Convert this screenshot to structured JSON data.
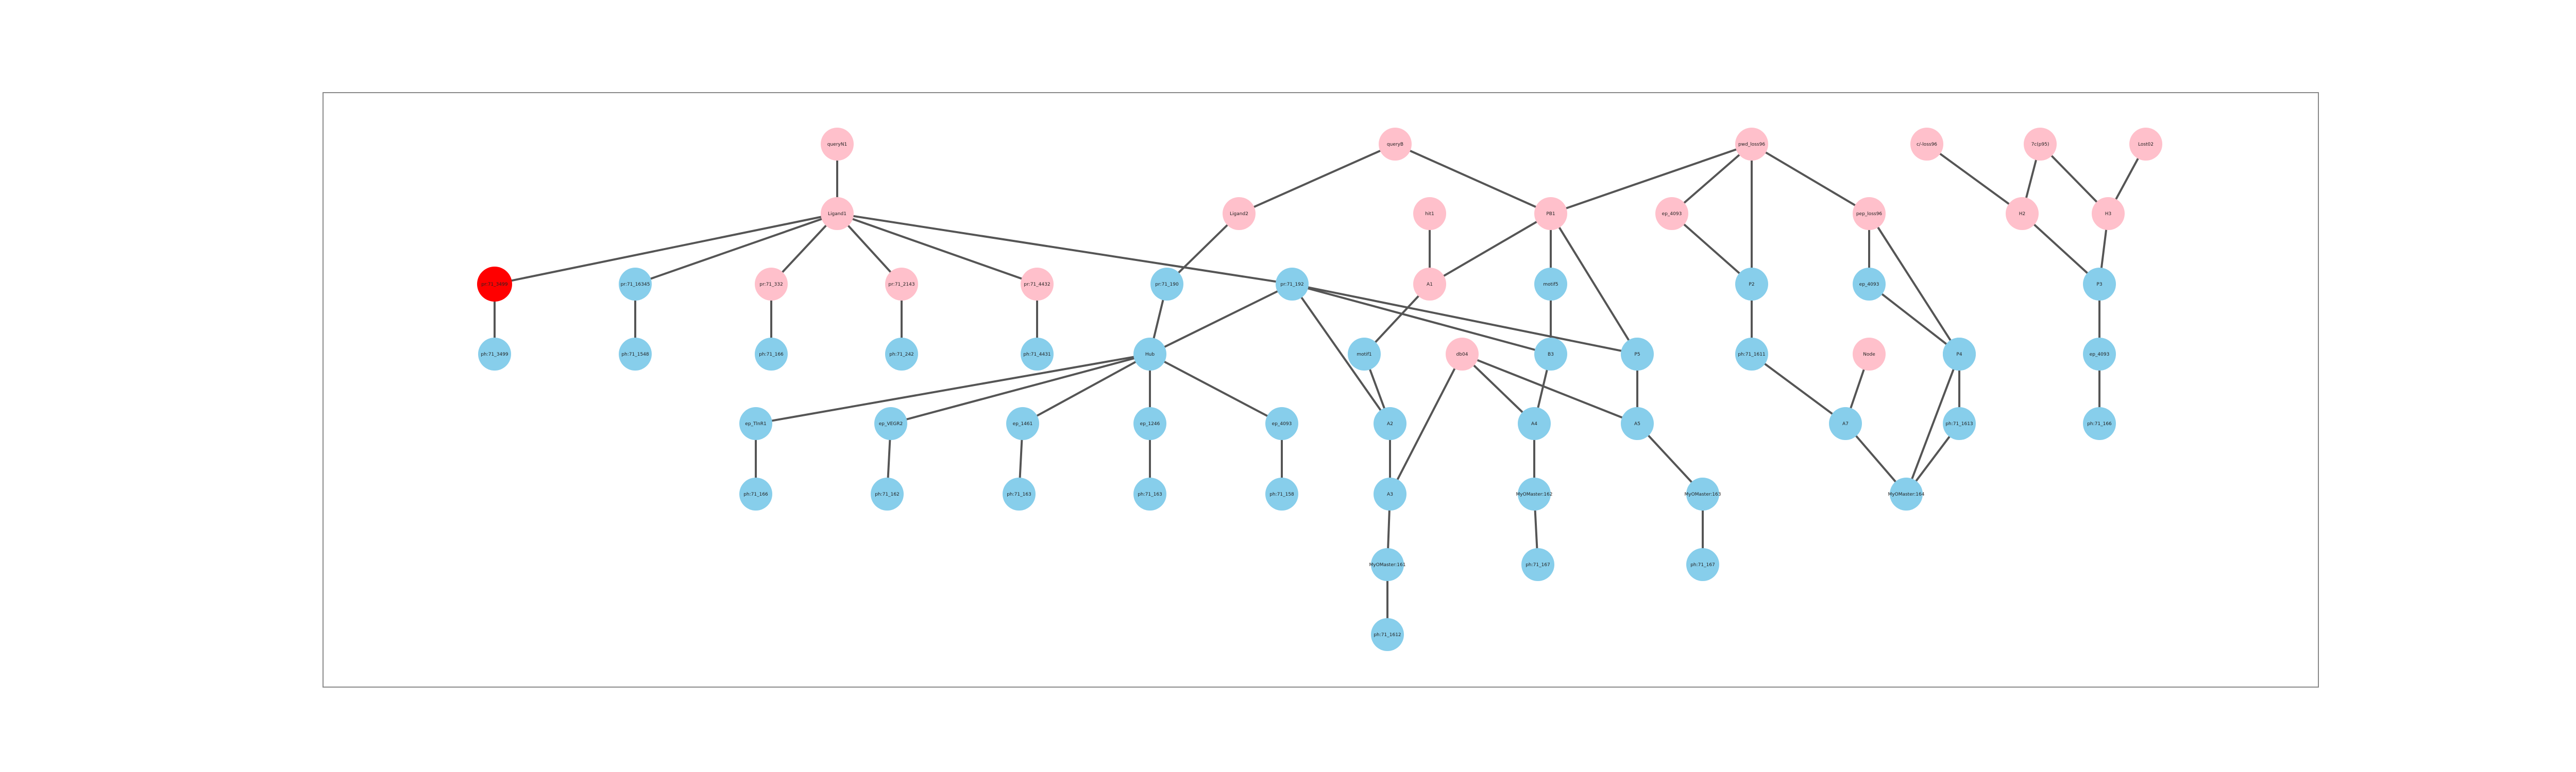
{
  "colors": {
    "pink": "#ffc0cb",
    "blue": "#87ceeb",
    "red": "#ff0000",
    "edge": "#555555",
    "frame": "#888888"
  },
  "nodes": [
    {
      "id": "n1",
      "label": "queryN1",
      "color": "pink"
    },
    {
      "id": "n2",
      "label": "Ligand1",
      "color": "pink"
    },
    {
      "id": "n3",
      "label": "pr:71_3499",
      "color": "red"
    },
    {
      "id": "n4",
      "label": "pr:71_16345",
      "color": "blue"
    },
    {
      "id": "n5",
      "label": "pr:71_332",
      "color": "pink"
    },
    {
      "id": "n6",
      "label": "pr:71_2143",
      "color": "pink"
    },
    {
      "id": "n7",
      "label": "pr:71_4432",
      "color": "pink"
    },
    {
      "id": "n8",
      "label": "ph:71_3499",
      "color": "blue"
    },
    {
      "id": "n9",
      "label": "ph:71_1548",
      "color": "blue"
    },
    {
      "id": "n10",
      "label": "ph:71_166",
      "color": "blue"
    },
    {
      "id": "n11",
      "label": "ph:71_242",
      "color": "blue"
    },
    {
      "id": "n12",
      "label": "ph:71_4431",
      "color": "blue"
    },
    {
      "id": "n13",
      "label": "queryB",
      "color": "pink"
    },
    {
      "id": "n14",
      "label": "Ligand2",
      "color": "pink"
    },
    {
      "id": "n15",
      "label": "pr:71_190",
      "color": "blue"
    },
    {
      "id": "n16",
      "label": "pr:71_192",
      "color": "blue"
    },
    {
      "id": "n17",
      "label": "Hub",
      "color": "blue"
    },
    {
      "id": "n18",
      "label": "ep_TlnR1",
      "color": "blue"
    },
    {
      "id": "n19",
      "label": "ep_VEGR2",
      "color": "blue"
    },
    {
      "id": "n20",
      "label": "ep_1461",
      "color": "blue"
    },
    {
      "id": "n21",
      "label": "ep_1246",
      "color": "blue"
    },
    {
      "id": "n22",
      "label": "ep_4093",
      "color": "blue"
    },
    {
      "id": "n23",
      "label": "ph:71_166",
      "color": "blue"
    },
    {
      "id": "n24",
      "label": "ph:71_162",
      "color": "blue"
    },
    {
      "id": "n25",
      "label": "ph:71_163",
      "color": "blue"
    },
    {
      "id": "n26",
      "label": "ph:71_163",
      "color": "blue"
    },
    {
      "id": "n27",
      "label": "ph:71_158",
      "color": "blue"
    },
    {
      "id": "n28",
      "label": "hit1",
      "color": "pink"
    },
    {
      "id": "n29",
      "label": "A1",
      "color": "pink"
    },
    {
      "id": "n30",
      "label": "motif1",
      "color": "blue"
    },
    {
      "id": "n31",
      "label": "A2",
      "color": "blue"
    },
    {
      "id": "n32",
      "label": "A3",
      "color": "blue"
    },
    {
      "id": "n33",
      "label": "MyOMaster:161",
      "color": "blue"
    },
    {
      "id": "n34",
      "label": "ph:71_1612",
      "color": "blue"
    },
    {
      "id": "n35",
      "label": "db04",
      "color": "pink"
    },
    {
      "id": "n36",
      "label": "PB1",
      "color": "pink"
    },
    {
      "id": "n37",
      "label": "motif5",
      "color": "blue"
    },
    {
      "id": "n38",
      "label": "B3",
      "color": "blue"
    },
    {
      "id": "n39",
      "label": "A4",
      "color": "blue"
    },
    {
      "id": "n40",
      "label": "MyOMaster:162",
      "color": "blue"
    },
    {
      "id": "n41",
      "label": "ph:71_167",
      "color": "blue"
    },
    {
      "id": "n42",
      "label": "P5",
      "color": "blue"
    },
    {
      "id": "n43",
      "label": "A5",
      "color": "blue"
    },
    {
      "id": "n44",
      "label": "MyOMaster:163",
      "color": "blue"
    },
    {
      "id": "n45",
      "label": "ph:71_167",
      "color": "blue"
    },
    {
      "id": "n46",
      "label": "pwd_loss96",
      "color": "pink"
    },
    {
      "id": "n47",
      "label": "ep_4093",
      "color": "pink"
    },
    {
      "id": "n48",
      "label": "P2",
      "color": "blue"
    },
    {
      "id": "n49",
      "label": "ph:71_1611",
      "color": "blue"
    },
    {
      "id": "n50",
      "label": "A7",
      "color": "blue"
    },
    {
      "id": "n51",
      "label": "Node",
      "color": "pink"
    },
    {
      "id": "n52",
      "label": "P6",
      "color": "blue"
    },
    {
      "id": "n53",
      "label": "MyOMaster:164",
      "color": "blue"
    },
    {
      "id": "n54",
      "label": "pep_loss96",
      "color": "pink"
    },
    {
      "id": "n55",
      "label": "ep_4093",
      "color": "blue"
    },
    {
      "id": "n56",
      "label": "P4",
      "color": "blue"
    },
    {
      "id": "n57",
      "label": "ph:71_1613",
      "color": "blue"
    },
    {
      "id": "n58",
      "label": "c/-loss96",
      "color": "pink"
    },
    {
      "id": "n59",
      "label": "7c(p95)",
      "color": "pink"
    },
    {
      "id": "n60",
      "label": "Lost02",
      "color": "pink"
    },
    {
      "id": "n61",
      "label": "H2",
      "color": "pink"
    },
    {
      "id": "n62",
      "label": "H3",
      "color": "pink"
    },
    {
      "id": "n63",
      "label": "P3",
      "color": "blue"
    },
    {
      "id": "n64",
      "label": "ep_4093",
      "color": "blue"
    },
    {
      "id": "n65",
      "label": "ph:71_166",
      "color": "blue"
    }
  ],
  "edges": [
    [
      "n1",
      "n2"
    ],
    [
      "n2",
      "n3"
    ],
    [
      "n2",
      "n4"
    ],
    [
      "n2",
      "n5"
    ],
    [
      "n2",
      "n6"
    ],
    [
      "n2",
      "n7"
    ],
    [
      "n2",
      "n16"
    ],
    [
      "n3",
      "n8"
    ],
    [
      "n4",
      "n9"
    ],
    [
      "n5",
      "n10"
    ],
    [
      "n6",
      "n11"
    ],
    [
      "n7",
      "n12"
    ],
    [
      "n13",
      "n14"
    ],
    [
      "n13",
      "n36"
    ],
    [
      "n14",
      "n15"
    ],
    [
      "n15",
      "n17"
    ],
    [
      "n16",
      "n17"
    ],
    [
      "n17",
      "n18"
    ],
    [
      "n17",
      "n19"
    ],
    [
      "n17",
      "n20"
    ],
    [
      "n17",
      "n21"
    ],
    [
      "n17",
      "n22"
    ],
    [
      "n18",
      "n23"
    ],
    [
      "n19",
      "n24"
    ],
    [
      "n20",
      "n25"
    ],
    [
      "n21",
      "n26"
    ],
    [
      "n22",
      "n27"
    ],
    [
      "n16",
      "n31"
    ],
    [
      "n16",
      "n38"
    ],
    [
      "n16",
      "n42"
    ],
    [
      "n28",
      "n29"
    ],
    [
      "n29",
      "n30"
    ],
    [
      "n29",
      "n36"
    ],
    [
      "n30",
      "n31"
    ],
    [
      "n31",
      "n32"
    ],
    [
      "n32",
      "n33"
    ],
    [
      "n33",
      "n34"
    ],
    [
      "n35",
      "n32"
    ],
    [
      "n35",
      "n39"
    ],
    [
      "n35",
      "n43"
    ],
    [
      "n36",
      "n37"
    ],
    [
      "n36",
      "n42"
    ],
    [
      "n37",
      "n38"
    ],
    [
      "n38",
      "n39"
    ],
    [
      "n39",
      "n40"
    ],
    [
      "n40",
      "n41"
    ],
    [
      "n42",
      "n43"
    ],
    [
      "n43",
      "n44"
    ],
    [
      "n44",
      "n45"
    ],
    [
      "n46",
      "n36"
    ],
    [
      "n46",
      "n47"
    ],
    [
      "n46",
      "n48"
    ],
    [
      "n46",
      "n54"
    ],
    [
      "n47",
      "n48"
    ],
    [
      "n48",
      "n49"
    ],
    [
      "n49",
      "n50"
    ],
    [
      "n51",
      "n50"
    ],
    [
      "n50",
      "n53"
    ],
    [
      "n52",
      "n53"
    ],
    [
      "n52",
      "n57"
    ],
    [
      "n54",
      "n55"
    ],
    [
      "n54",
      "n56"
    ],
    [
      "n55",
      "n56"
    ],
    [
      "n56",
      "n57"
    ],
    [
      "n57",
      "n53"
    ],
    [
      "n58",
      "n61"
    ],
    [
      "n59",
      "n61"
    ],
    [
      "n59",
      "n62"
    ],
    [
      "n60",
      "n62"
    ],
    [
      "n61",
      "n63"
    ],
    [
      "n62",
      "n63"
    ],
    [
      "n63",
      "n64"
    ],
    [
      "n64",
      "n65"
    ]
  ]
}
